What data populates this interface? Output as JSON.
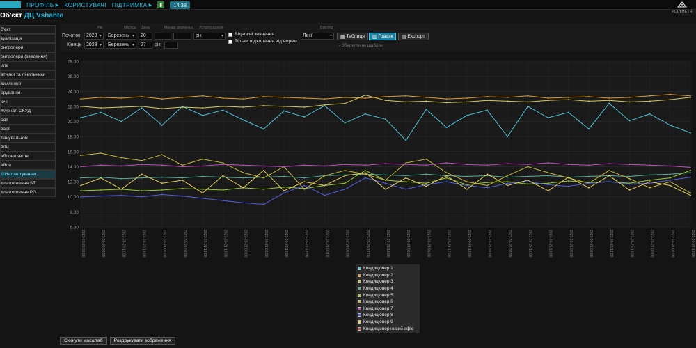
{
  "header": {
    "nav": [
      {
        "label": "ПРОФІЛЬ"
      },
      {
        "label": "КОРИСТУВАЧІ"
      },
      {
        "label": "ПІДТРИМКА"
      }
    ],
    "time": "14:38",
    "logo_text": "POLYMETR"
  },
  "object": {
    "prefix": "Об'єкт",
    "name": "ДЦ Vshahte"
  },
  "sidebar": {
    "items": [
      {
        "label": "б'єкт"
      },
      {
        "label": "зуалізація"
      },
      {
        "label": "онтролери"
      },
      {
        "label": "онтролери (зведення)"
      },
      {
        "label": "иле"
      },
      {
        "label": "атчики та лічильники"
      },
      {
        "label": "дхилення"
      },
      {
        "label": "ерування"
      },
      {
        "label": "ючі"
      },
      {
        "label": "Журнал СКУД"
      },
      {
        "label": "одії"
      },
      {
        "label": "варії"
      },
      {
        "label": "ланувальник"
      },
      {
        "label": "віти"
      },
      {
        "label": "аблони звітів"
      },
      {
        "label": "айли"
      },
      {
        "label": "Налаштування"
      },
      {
        "label": "длагодження ST"
      },
      {
        "label": "длагодження PG"
      }
    ]
  },
  "filter": {
    "hints": {
      "year": "Рік",
      "month": "Місяць",
      "day": "День",
      "less": "Менші значення",
      "device": "Устаткування",
      "view": "Вигляд"
    },
    "start_label": "Початок",
    "end_label": "Кінець",
    "start": {
      "year": "2023",
      "month": "Березень",
      "day": "20",
      "extra1": "",
      "extra2": ""
    },
    "end": {
      "year": "2023",
      "month": "Березень",
      "day": "27",
      "unit": "рік",
      "extra": ""
    },
    "period": "рік",
    "relative_label": "Відносні значення",
    "deviation_label": "Тільки відхилення від норми",
    "view_value": "Лінії",
    "table_button": "Таблиця",
    "chart_button": "Графік",
    "export_button": "Експорт",
    "save_template": "Зберегти як шаблон"
  },
  "bottom": {
    "reset_zoom": "Скинути масштаб",
    "print_image": "Роздрукувати зображення"
  },
  "chart_data": {
    "type": "line",
    "ylim": [
      6,
      28
    ],
    "yticks": [
      "6.00",
      "8.00",
      "10.00",
      "12.00",
      "14.00",
      "16.00",
      "18.00",
      "20.00",
      "22.00",
      "24.00",
      "26.00",
      "28.00"
    ],
    "xticks": [
      "2023-03-20 00:00",
      "2023-03-20 06:00",
      "2023-03-20 12:00",
      "2023-03-20 18:00",
      "2023-03-21 00:00",
      "2023-03-21 06:00",
      "2023-03-21 12:00",
      "2023-03-21 18:00",
      "2023-03-22 00:00",
      "2023-03-22 06:00",
      "2023-03-22 12:00",
      "2023-03-22 18:00",
      "2023-03-23 00:00",
      "2023-03-23 06:00",
      "2023-03-23 12:00",
      "2023-03-23 18:00",
      "2023-03-24 00:00",
      "2023-03-24 06:00",
      "2023-03-24 12:00",
      "2023-03-24 18:00",
      "2023-03-25 00:00",
      "2023-03-25 06:00",
      "2023-03-25 12:00",
      "2023-03-25 18:00",
      "2023-03-26 00:00",
      "2023-03-26 06:00",
      "2023-03-26 12:00",
      "2023-03-26 18:00",
      "2023-03-27 00:00",
      "2023-03-27 06:00",
      "2023-03-27 12:00"
    ],
    "series": [
      {
        "name": "Кондиціонер 1",
        "color": "#4fc3d8",
        "values": [
          20.5,
          21.2,
          20.0,
          21.8,
          19.5,
          22.0,
          20.8,
          21.5,
          20.2,
          19.0,
          21.4,
          20.6,
          22.1,
          19.8,
          21.0,
          20.3,
          17.5,
          21.6,
          19.2,
          20.8,
          21.5,
          18.0,
          22.0,
          20.5,
          21.2,
          19.0,
          22.4,
          20.1,
          21.0,
          19.5,
          18.5
        ]
      },
      {
        "name": "Кондиціонер 2",
        "color": "#e0a030",
        "values": [
          23.0,
          23.2,
          23.1,
          23.3,
          23.0,
          23.2,
          23.4,
          23.1,
          23.0,
          23.3,
          23.2,
          23.1,
          23.0,
          23.2,
          23.1,
          23.3,
          23.4,
          23.2,
          23.0,
          23.1,
          23.3,
          23.2,
          23.4,
          23.1,
          23.2,
          23.3,
          23.1,
          23.2,
          23.4,
          23.6,
          23.4
        ]
      },
      {
        "name": "Кондиціонер 3",
        "color": "#d8c860",
        "values": [
          22.0,
          21.8,
          21.9,
          22.0,
          21.7,
          21.9,
          21.8,
          22.0,
          21.9,
          22.1,
          22.0,
          21.9,
          22.2,
          22.4,
          23.5,
          22.8,
          22.6,
          22.7,
          22.5,
          22.6,
          22.8,
          22.7,
          22.6,
          22.8,
          22.9,
          22.7,
          22.8,
          22.6,
          22.7,
          22.9,
          23.2
        ]
      },
      {
        "name": "Кондиціонер 4",
        "color": "#58b09c",
        "values": [
          12.5,
          12.6,
          12.4,
          12.5,
          12.6,
          12.5,
          12.7,
          12.6,
          12.5,
          12.6,
          12.7,
          12.5,
          12.8,
          12.9,
          13.0,
          12.9,
          12.8,
          13.0,
          12.8,
          12.7,
          12.8,
          12.6,
          12.7,
          12.8,
          12.6,
          12.7,
          12.8,
          12.7,
          12.9,
          13.0,
          13.2
        ]
      },
      {
        "name": "Кондиціонер 5",
        "color": "#9acd32",
        "values": [
          10.8,
          10.9,
          11.0,
          10.8,
          10.9,
          11.1,
          11.0,
          10.9,
          11.2,
          11.0,
          11.3,
          11.1,
          11.5,
          11.8,
          13.5,
          12.2,
          12.0,
          11.8,
          12.5,
          11.6,
          11.9,
          12.0,
          11.7,
          11.8,
          12.1,
          11.9,
          12.0,
          11.8,
          12.2,
          12.5,
          13.5
        ]
      },
      {
        "name": "Кондиціонер 6",
        "color": "#c8b840",
        "values": [
          15.5,
          15.8,
          15.2,
          14.8,
          15.6,
          14.2,
          15.0,
          14.5,
          13.2,
          12.5,
          14.0,
          11.0,
          12.8,
          13.5,
          13.0,
          12.2,
          14.5,
          15.0,
          13.2,
          12.0,
          11.5,
          12.8,
          14.0,
          13.2,
          12.5,
          11.8,
          13.5,
          12.4,
          11.2,
          12.0,
          10.5
        ]
      },
      {
        "name": "Кондиціонер 7",
        "color": "#c050c0",
        "values": [
          14.0,
          14.2,
          14.1,
          14.3,
          14.2,
          14.0,
          14.1,
          14.3,
          14.2,
          14.1,
          14.0,
          14.2,
          14.1,
          14.3,
          14.2,
          14.4,
          14.3,
          14.2,
          14.5,
          14.3,
          14.2,
          14.4,
          14.3,
          14.5,
          14.3,
          14.2,
          14.4,
          14.3,
          14.2,
          14.1,
          13.9
        ]
      },
      {
        "name": "Кондиціонер 8",
        "color": "#5060e0",
        "values": [
          10.0,
          10.1,
          10.2,
          10.0,
          10.3,
          10.1,
          9.8,
          9.5,
          9.2,
          9.0,
          10.5,
          11.5,
          10.2,
          11.0,
          12.5,
          11.8,
          11.0,
          11.6,
          12.0,
          11.5,
          11.2,
          11.8,
          12.0,
          11.6,
          11.4,
          11.8,
          12.0,
          11.7,
          11.8,
          12.2,
          12.6
        ]
      },
      {
        "name": "Кондиціонер 9",
        "color": "#e8d060",
        "values": [
          11.5,
          12.5,
          11.0,
          13.0,
          11.8,
          12.2,
          10.5,
          12.8,
          11.2,
          13.5,
          10.8,
          12.0,
          11.5,
          12.8,
          13.2,
          11.0,
          12.5,
          11.4,
          12.8,
          11.0,
          13.0,
          11.5,
          12.2,
          10.8,
          12.6,
          11.2,
          12.8,
          10.9,
          12.0,
          11.5,
          10.2
        ]
      },
      {
        "name": "Кондиціонер новий офіс",
        "color": "#e05030",
        "values": []
      }
    ]
  }
}
